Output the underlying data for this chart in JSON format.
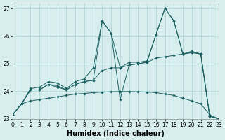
{
  "xlabel": "Humidex (Indice chaleur)",
  "background_color": "#d8eeee",
  "grid_color": "#aad4d4",
  "line_color": "#1a6060",
  "xlim": [
    0,
    23
  ],
  "ylim": [
    23,
    27.2
  ],
  "yticks": [
    23,
    24,
    25,
    26,
    27
  ],
  "xticks": [
    0,
    1,
    2,
    3,
    4,
    5,
    6,
    7,
    8,
    9,
    10,
    11,
    12,
    13,
    14,
    15,
    16,
    17,
    18,
    19,
    20,
    21,
    22,
    23
  ],
  "line1_x": [
    0,
    1,
    2,
    3,
    4,
    5,
    6,
    7,
    8,
    9,
    10,
    11,
    12,
    13,
    14,
    15,
    16,
    17,
    18,
    19,
    20,
    21,
    22,
    23
  ],
  "line1_y": [
    23.15,
    23.55,
    24.05,
    24.05,
    24.25,
    24.15,
    24.05,
    24.25,
    24.35,
    24.4,
    24.75,
    24.85,
    24.85,
    24.95,
    25.0,
    25.05,
    25.2,
    25.25,
    25.3,
    25.35,
    25.4,
    25.35,
    23.1,
    23.0
  ],
  "line2_x": [
    0,
    1,
    2,
    3,
    4,
    5,
    6,
    7,
    8,
    9,
    10,
    11,
    12,
    13,
    14,
    15,
    16,
    17,
    18,
    19,
    20,
    21,
    22,
    23
  ],
  "line2_y": [
    23.15,
    23.55,
    24.1,
    24.15,
    24.35,
    24.3,
    24.1,
    24.35,
    24.45,
    24.85,
    26.55,
    26.1,
    24.85,
    25.05,
    25.05,
    25.1,
    26.05,
    27.0,
    26.55,
    25.35,
    25.45,
    25.35,
    23.1,
    23.0
  ],
  "line3_x": [
    0,
    1,
    2,
    3,
    4,
    5,
    6,
    7,
    8,
    9,
    10,
    11,
    12,
    13,
    14,
    15,
    16,
    17,
    18,
    19,
    20,
    21,
    22,
    23
  ],
  "line3_y": [
    23.15,
    23.55,
    24.05,
    24.05,
    24.25,
    24.2,
    24.05,
    24.25,
    24.35,
    24.4,
    26.55,
    26.1,
    23.7,
    24.95,
    25.0,
    25.05,
    26.05,
    27.0,
    26.55,
    25.35,
    25.4,
    25.35,
    23.1,
    23.0
  ],
  "line4_x": [
    0,
    1,
    2,
    3,
    4,
    5,
    6,
    7,
    8,
    9,
    10,
    11,
    12,
    13,
    14,
    15,
    16,
    17,
    18,
    19,
    20,
    21,
    22,
    23
  ],
  "line4_y": [
    23.15,
    23.55,
    23.65,
    23.7,
    23.75,
    23.8,
    23.85,
    23.9,
    23.92,
    23.95,
    23.97,
    23.98,
    23.99,
    23.99,
    23.98,
    23.97,
    23.95,
    23.9,
    23.85,
    23.75,
    23.65,
    23.55,
    23.15,
    23.0
  ]
}
